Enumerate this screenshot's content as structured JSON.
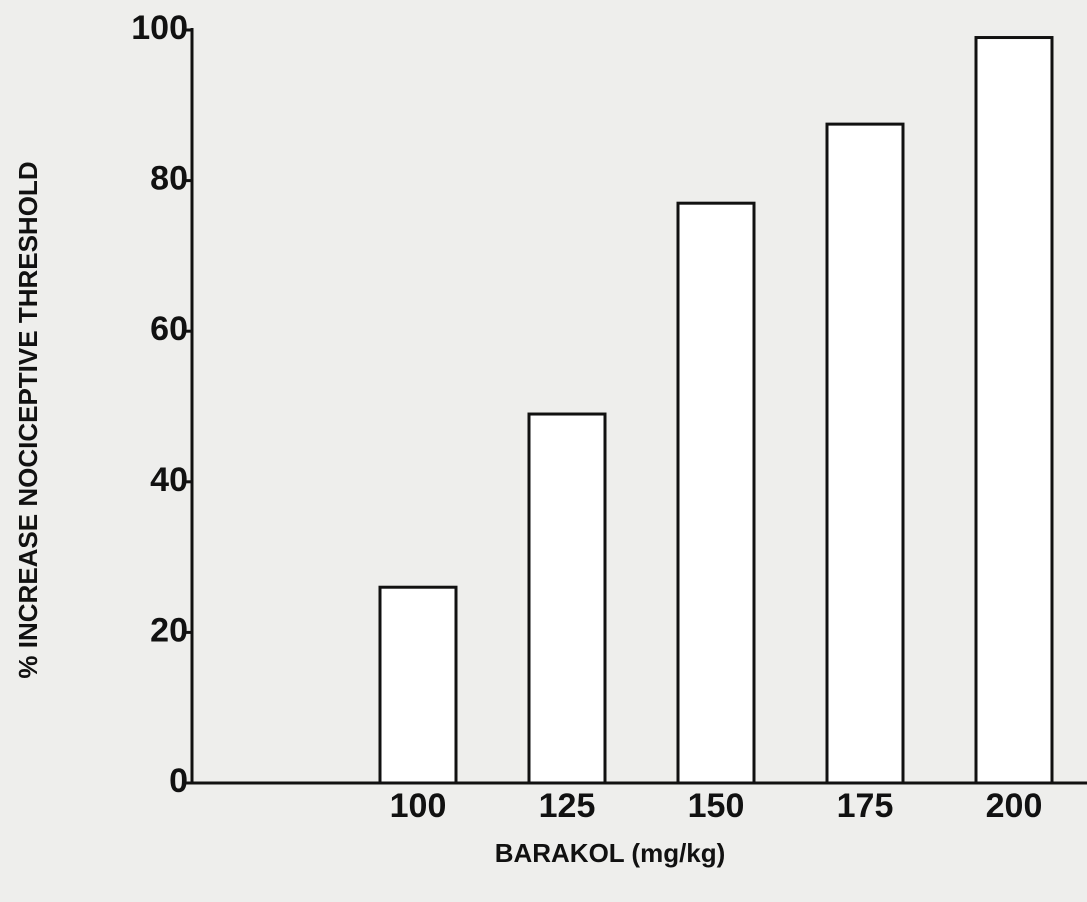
{
  "chart_data": {
    "type": "bar",
    "y_label": "% INCREASE NOCICEPTIVE THRESHOLD",
    "x_label": "BARAKOL (mg/kg)",
    "categories": [
      "100",
      "125",
      "150",
      "175",
      "200"
    ],
    "values": [
      26,
      49,
      77,
      87.5,
      99
    ],
    "color": "#ffffff",
    "ylim": [
      0,
      100
    ],
    "yticks": [
      0,
      20,
      40,
      60,
      80,
      100
    ]
  }
}
